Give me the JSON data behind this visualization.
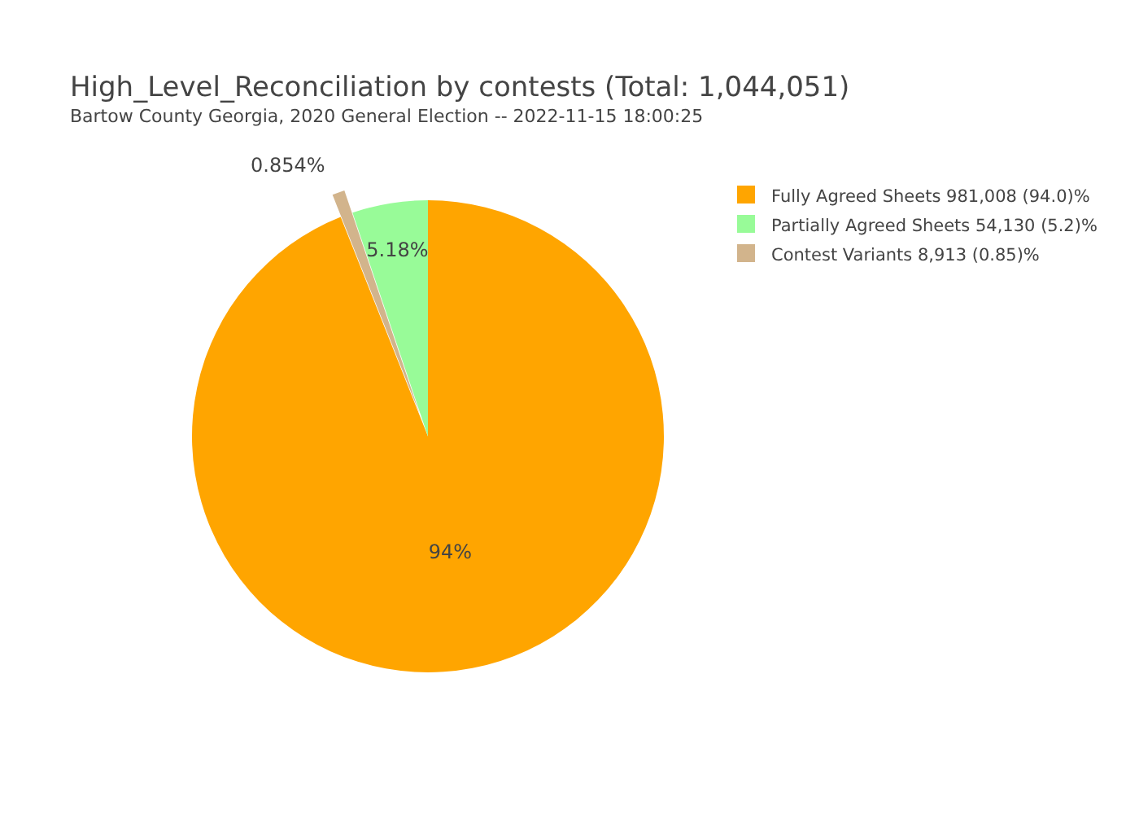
{
  "chart_data": {
    "type": "pie",
    "title": "High_Level_Reconciliation by contests (Total: 1,044,051)",
    "subtitle": "Bartow County Georgia, 2020 General Election -- 2022-11-15 18:00:25",
    "categories": [
      "Fully Agreed Sheets 981,008 (94.0)%",
      "Partially Agreed Sheets 54,130 (5.2)%",
      "Contest Variants 8,913 (0.85)%"
    ],
    "values": [
      94,
      5.18,
      0.854
    ],
    "value_labels": [
      "94%",
      "5.18%",
      "0.854%"
    ],
    "colors": [
      "#ffa500",
      "#98fb98",
      "#d2b48c"
    ],
    "legend": "top right"
  }
}
